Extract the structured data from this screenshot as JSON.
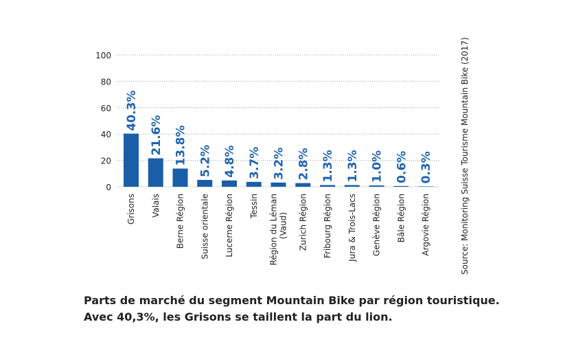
{
  "chart_data": {
    "type": "bar",
    "categories": [
      "Grisons",
      "Valais",
      "Berne Région",
      "Suisse orientale",
      "Lucerne Région",
      "Tessin",
      "Région du Léman\n(Vaud)",
      "Zurich Région",
      "Fribourg Région",
      "Jura & Trois-Lacs",
      "Genève Région",
      "Bâle Région",
      "Argovie Région"
    ],
    "values": [
      40.3,
      21.6,
      13.8,
      5.2,
      4.8,
      3.7,
      3.2,
      2.8,
      1.3,
      1.3,
      1.0,
      0.6,
      0.3
    ],
    "value_labels": [
      "40.3%",
      "21.6%",
      "13.8%",
      "5.2%",
      "4.8%",
      "3.7%",
      "3.2%",
      "2.8%",
      "1.3%",
      "1.3%",
      "1.0%",
      "0.6%",
      "0.3%"
    ],
    "color": "#1a5ea8",
    "ylim": [
      0,
      100
    ],
    "yticks": [
      0,
      20,
      40,
      60,
      80,
      100
    ],
    "grid": true,
    "source": "Source: Monitoring Suisse Tourisme Mountain Bike (2017)",
    "caption": [
      "Parts de marché du segment Mountain Bike par région touristique.",
      "Avec 40,3%, les Grisons se taillent la part du lion."
    ]
  }
}
